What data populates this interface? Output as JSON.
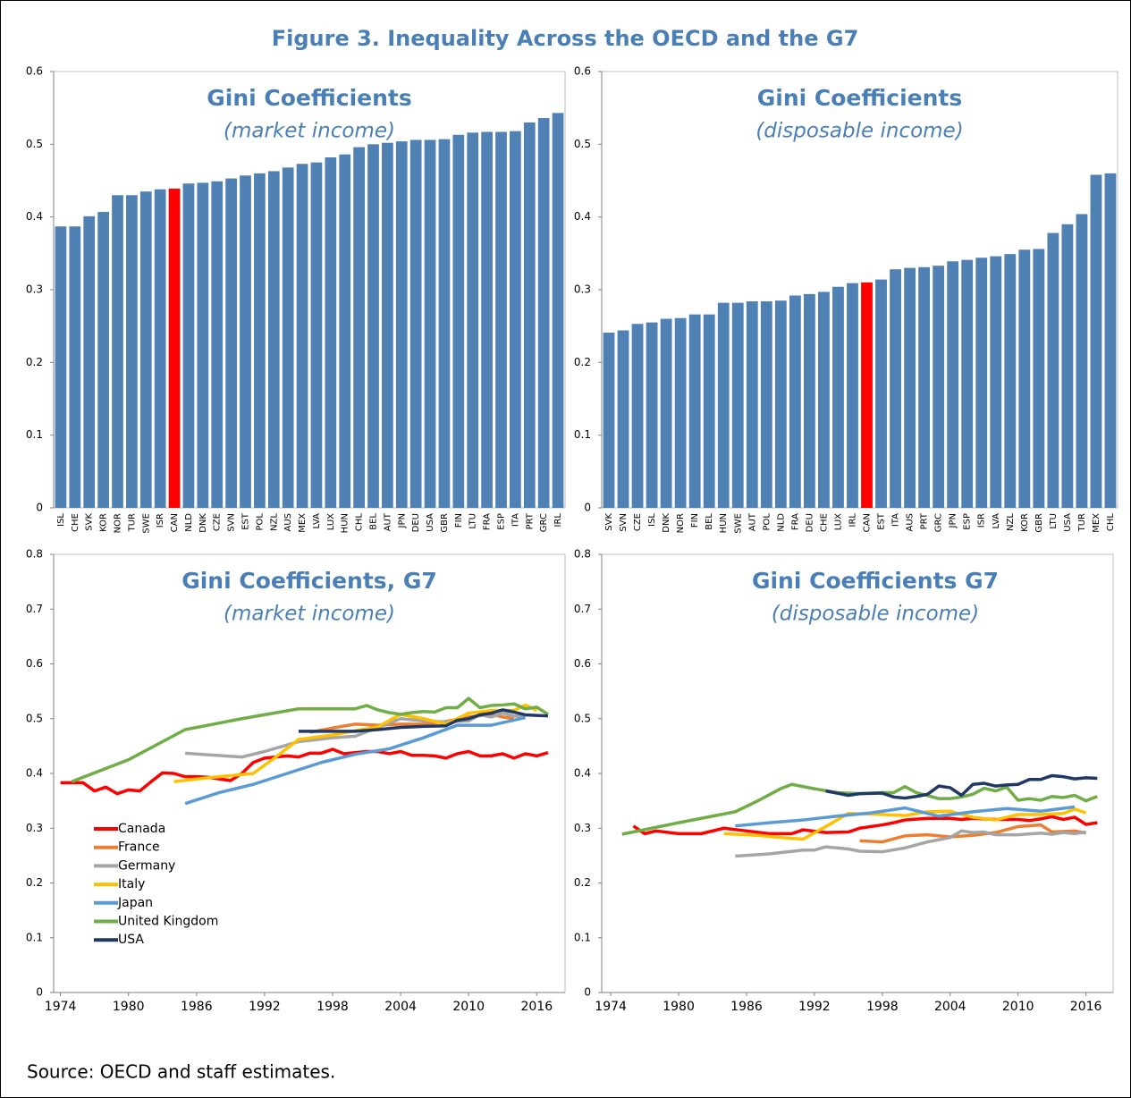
{
  "title": "Figure 3. Inequality Across the OECD and the G7",
  "note": "Source: OECD and staff estimates.",
  "chart_data": [
    {
      "type": "bar",
      "title": "Gini Coefficients",
      "subtitle": "(market income)",
      "categories": [
        "ISL",
        "CHE",
        "SVK",
        "KOR",
        "NOR",
        "TUR",
        "SWE",
        "ISR",
        "CAN",
        "NLD",
        "DNK",
        "CZE",
        "SVN",
        "EST",
        "POL",
        "NZL",
        "AUS",
        "MEX",
        "LVA",
        "LUX",
        "HUN",
        "CHL",
        "BEL",
        "AUT",
        "JPN",
        "DEU",
        "USA",
        "GBR",
        "FIN",
        "LTU",
        "FRA",
        "ESP",
        "ITA",
        "PRT",
        "GRC",
        "IRL"
      ],
      "values": [
        0.387,
        0.387,
        0.401,
        0.407,
        0.43,
        0.43,
        0.435,
        0.438,
        0.439,
        0.446,
        0.447,
        0.449,
        0.453,
        0.457,
        0.46,
        0.463,
        0.468,
        0.473,
        0.475,
        0.482,
        0.486,
        0.496,
        0.5,
        0.502,
        0.504,
        0.506,
        0.506,
        0.507,
        0.513,
        0.516,
        0.517,
        0.517,
        0.518,
        0.53,
        0.536,
        0.543
      ],
      "color": "#4f81b4",
      "highlight": "CAN",
      "highlight_color": "#ff0000",
      "ylim": [
        0,
        0.6
      ],
      "yticks": [
        0,
        0.1,
        0.2,
        0.3,
        0.4,
        0.5,
        0.6
      ]
    },
    {
      "type": "bar",
      "title": "Gini Coefficients",
      "subtitle": "(disposable income)",
      "categories": [
        "SVK",
        "SVN",
        "CZE",
        "ISL",
        "DNK",
        "NOR",
        "FIN",
        "BEL",
        "HUN",
        "SWE",
        "AUT",
        "POL",
        "NLD",
        "FRA",
        "DEU",
        "CHE",
        "LUX",
        "IRL",
        "CAN",
        "EST",
        "ITA",
        "AUS",
        "PRT",
        "GRC",
        "JPN",
        "ESP",
        "ISR",
        "LVA",
        "NZL",
        "KOR",
        "GBR",
        "LTU",
        "USA",
        "TUR",
        "MEX",
        "CHL"
      ],
      "values": [
        0.241,
        0.244,
        0.253,
        0.255,
        0.26,
        0.261,
        0.266,
        0.266,
        0.282,
        0.282,
        0.284,
        0.284,
        0.285,
        0.292,
        0.294,
        0.297,
        0.304,
        0.309,
        0.31,
        0.314,
        0.328,
        0.33,
        0.331,
        0.333,
        0.339,
        0.341,
        0.344,
        0.346,
        0.349,
        0.355,
        0.356,
        0.378,
        0.39,
        0.404,
        0.458,
        0.46
      ],
      "color": "#4f81b4",
      "highlight": "CAN",
      "highlight_color": "#ff0000",
      "ylim": [
        0,
        0.6
      ],
      "yticks": [
        0,
        0.1,
        0.2,
        0.3,
        0.4,
        0.5,
        0.6
      ]
    },
    {
      "type": "line",
      "title": "Gini Coefficients, G7",
      "subtitle": "(market income)",
      "xlim": [
        1973.4,
        2018.5
      ],
      "xticks": [
        1974,
        1980,
        1986,
        1992,
        1998,
        2004,
        2010,
        2016
      ],
      "ylim": [
        0,
        0.8
      ],
      "yticks": [
        0,
        0.1,
        0.2,
        0.3,
        0.4,
        0.5,
        0.6,
        0.7,
        0.8
      ],
      "legend": "lower left",
      "series": [
        {
          "name": "Canada",
          "color": "#ff0000",
          "x": [
            1974,
            1975,
            1976,
            1977,
            1978,
            1979,
            1980,
            1981,
            1982,
            1983,
            1984,
            1985,
            1986,
            1987,
            1988,
            1989,
            1990,
            1991,
            1992,
            1993,
            1994,
            1995,
            1996,
            1997,
            1998,
            1999,
            2000,
            2001,
            2002,
            2003,
            2004,
            2005,
            2006,
            2007,
            2008,
            2009,
            2010,
            2011,
            2012,
            2013,
            2014,
            2015,
            2016,
            2017
          ],
          "values": [
            0.383,
            0.383,
            0.383,
            0.368,
            0.375,
            0.363,
            0.37,
            0.368,
            0.385,
            0.401,
            0.4,
            0.394,
            0.394,
            0.393,
            0.39,
            0.387,
            0.4,
            0.42,
            0.428,
            0.43,
            0.432,
            0.43,
            0.437,
            0.437,
            0.444,
            0.436,
            0.438,
            0.44,
            0.44,
            0.436,
            0.44,
            0.433,
            0.433,
            0.432,
            0.428,
            0.436,
            0.44,
            0.432,
            0.432,
            0.436,
            0.428,
            0.436,
            0.432,
            0.438
          ]
        },
        {
          "name": "France",
          "color": "#ed7d31",
          "x": [
            1996,
            1998,
            2000,
            2002,
            2004,
            2006,
            2008,
            2010,
            2012,
            2013,
            2014
          ],
          "values": [
            0.475,
            0.483,
            0.49,
            0.488,
            0.49,
            0.49,
            0.495,
            0.503,
            0.508,
            0.503,
            0.5
          ]
        },
        {
          "name": "Germany",
          "color": "#a5a5a5",
          "x": [
            1985,
            1987,
            1990,
            1992,
            1995,
            1998,
            2000,
            2004,
            2006,
            2008,
            2010,
            2011,
            2012,
            2013,
            2014,
            2015
          ],
          "values": [
            0.437,
            0.434,
            0.43,
            0.44,
            0.458,
            0.465,
            0.468,
            0.5,
            0.496,
            0.494,
            0.496,
            0.507,
            0.503,
            0.51,
            0.505,
            0.503
          ]
        },
        {
          "name": "Italy",
          "color": "#ffc000",
          "x": [
            1984,
            1987,
            1989,
            1991,
            1993,
            1995,
            1998,
            2000,
            2002,
            2004,
            2006,
            2008,
            2010,
            2012,
            2014,
            2015,
            2016
          ],
          "values": [
            0.385,
            0.392,
            0.396,
            0.4,
            0.43,
            0.462,
            0.47,
            0.478,
            0.485,
            0.508,
            0.5,
            0.49,
            0.51,
            0.515,
            0.515,
            0.525,
            0.515
          ]
        },
        {
          "name": "Japan",
          "color": "#5b9bd5",
          "x": [
            1985,
            1988,
            1991,
            1994,
            1997,
            2000,
            2003,
            2006,
            2009,
            2012,
            2015
          ],
          "values": [
            0.345,
            0.365,
            0.38,
            0.4,
            0.42,
            0.435,
            0.445,
            0.465,
            0.488,
            0.488,
            0.502
          ]
        },
        {
          "name": "United Kingdom",
          "color": "#70ad47",
          "x": [
            1975,
            1980,
            1985,
            1990,
            1995,
            2000,
            2001,
            2002,
            2003,
            2004,
            2005,
            2006,
            2007,
            2008,
            2009,
            2010,
            2011,
            2012,
            2013,
            2014,
            2015,
            2016,
            2017
          ],
          "values": [
            0.385,
            0.425,
            0.48,
            0.5,
            0.518,
            0.518,
            0.524,
            0.516,
            0.511,
            0.508,
            0.511,
            0.513,
            0.512,
            0.52,
            0.52,
            0.537,
            0.52,
            0.524,
            0.525,
            0.527,
            0.518,
            0.521,
            0.508
          ]
        },
        {
          "name": "USA",
          "color": "#203864",
          "x": [
            1995,
            2000,
            2002,
            2004,
            2006,
            2008,
            2009,
            2010,
            2011,
            2012,
            2013,
            2014,
            2015,
            2016,
            2017
          ],
          "values": [
            0.477,
            0.477,
            0.48,
            0.484,
            0.486,
            0.487,
            0.497,
            0.5,
            0.507,
            0.51,
            0.516,
            0.512,
            0.507,
            0.506,
            0.505
          ]
        }
      ]
    },
    {
      "type": "line",
      "title": "Gini Coefficients G7",
      "subtitle": "(disposable income)",
      "xlim": [
        1973.2,
        2018.4
      ],
      "xticks": [
        1974,
        1980,
        1986,
        1992,
        1998,
        2004,
        2010,
        2016
      ],
      "ylim": [
        0,
        0.8
      ],
      "yticks": [
        0,
        0.1,
        0.2,
        0.3,
        0.4,
        0.5,
        0.6,
        0.7,
        0.8
      ],
      "series": [
        {
          "color": "#ff0000",
          "x": [
            1976,
            1977,
            1978,
            1980,
            1982,
            1984,
            1986,
            1988,
            1990,
            1991,
            1993,
            1995,
            1996,
            1998,
            1999,
            2000,
            2002,
            2004,
            2005,
            2006,
            2008,
            2010,
            2011,
            2012,
            2013,
            2014,
            2015,
            2016,
            2017
          ],
          "values": [
            0.304,
            0.29,
            0.295,
            0.29,
            0.29,
            0.3,
            0.295,
            0.29,
            0.29,
            0.297,
            0.292,
            0.293,
            0.3,
            0.306,
            0.31,
            0.315,
            0.318,
            0.318,
            0.316,
            0.318,
            0.316,
            0.316,
            0.314,
            0.317,
            0.321,
            0.316,
            0.32,
            0.307,
            0.31
          ]
        },
        {
          "color": "#ed7d31",
          "x": [
            1996,
            1998,
            2000,
            2002,
            2004,
            2006,
            2008,
            2010,
            2012,
            2013,
            2014,
            2015,
            2016
          ],
          "values": [
            0.277,
            0.275,
            0.286,
            0.288,
            0.284,
            0.287,
            0.292,
            0.303,
            0.306,
            0.293,
            0.294,
            0.295,
            0.291
          ]
        },
        {
          "color": "#a5a5a5",
          "x": [
            1985,
            1988,
            1991,
            1992,
            1993,
            1995,
            1996,
            1998,
            2000,
            2002,
            2004,
            2005,
            2006,
            2007,
            2008,
            2010,
            2012,
            2013,
            2014,
            2015,
            2016
          ],
          "values": [
            0.249,
            0.253,
            0.26,
            0.26,
            0.266,
            0.262,
            0.258,
            0.257,
            0.264,
            0.275,
            0.283,
            0.295,
            0.292,
            0.293,
            0.288,
            0.288,
            0.291,
            0.289,
            0.292,
            0.29,
            0.293
          ]
        },
        {
          "color": "#ffc000",
          "x": [
            1984,
            1987,
            1989,
            1991,
            1993,
            1995,
            1998,
            2000,
            2002,
            2004,
            2006,
            2008,
            2010,
            2012,
            2014,
            2015,
            2016
          ],
          "values": [
            0.29,
            0.287,
            0.283,
            0.28,
            0.303,
            0.327,
            0.325,
            0.323,
            0.33,
            0.331,
            0.32,
            0.315,
            0.325,
            0.325,
            0.327,
            0.335,
            0.328
          ]
        },
        {
          "color": "#5b9bd5",
          "x": [
            1985,
            1988,
            1991,
            1994,
            1997,
            2000,
            2003,
            2006,
            2009,
            2012,
            2015
          ],
          "values": [
            0.304,
            0.31,
            0.315,
            0.322,
            0.328,
            0.337,
            0.322,
            0.33,
            0.336,
            0.331,
            0.339
          ]
        },
        {
          "color": "#70ad47",
          "x": [
            1975,
            1980,
            1985,
            1987,
            1989,
            1990,
            1992,
            1994,
            1996,
            1998,
            1999,
            2000,
            2001,
            2003,
            2004,
            2005,
            2006,
            2007,
            2008,
            2009,
            2010,
            2011,
            2012,
            2013,
            2014,
            2015,
            2016,
            2017
          ],
          "values": [
            0.289,
            0.31,
            0.33,
            0.35,
            0.372,
            0.38,
            0.372,
            0.365,
            0.363,
            0.365,
            0.365,
            0.376,
            0.365,
            0.354,
            0.354,
            0.357,
            0.362,
            0.373,
            0.368,
            0.375,
            0.351,
            0.354,
            0.351,
            0.358,
            0.356,
            0.36,
            0.35,
            0.358
          ]
        },
        {
          "color": "#203864",
          "x": [
            1993,
            1995,
            1996,
            1998,
            1999,
            2000,
            2001,
            2002,
            2003,
            2004,
            2005,
            2006,
            2007,
            2008,
            2009,
            2010,
            2011,
            2012,
            2013,
            2014,
            2015,
            2016,
            2017
          ],
          "values": [
            0.368,
            0.36,
            0.363,
            0.364,
            0.357,
            0.355,
            0.358,
            0.362,
            0.377,
            0.374,
            0.36,
            0.38,
            0.382,
            0.377,
            0.379,
            0.38,
            0.389,
            0.389,
            0.396,
            0.394,
            0.39,
            0.392,
            0.391
          ]
        }
      ]
    }
  ]
}
